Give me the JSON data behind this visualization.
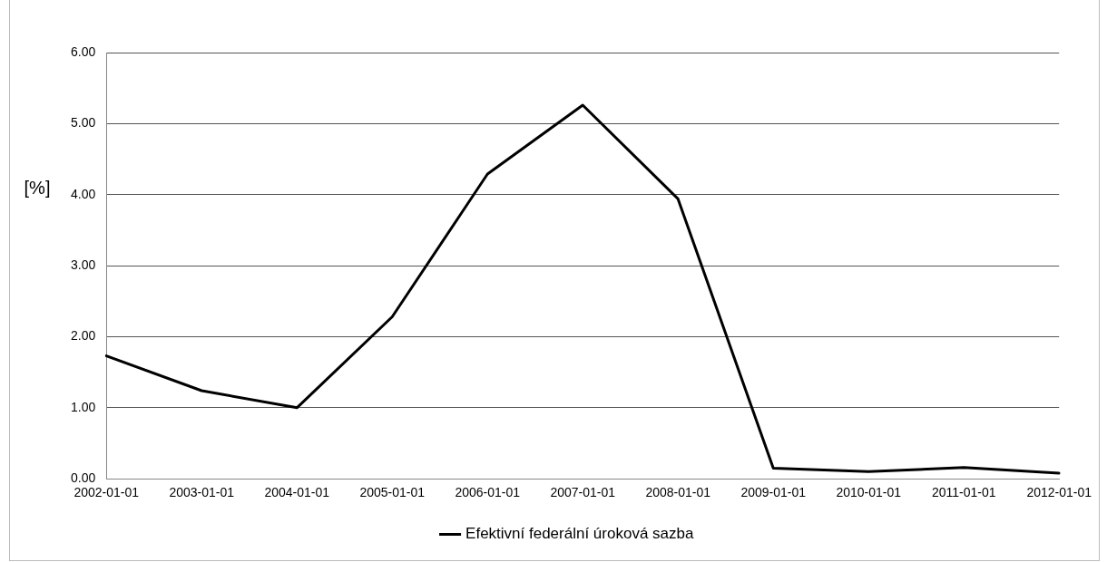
{
  "chart_data": {
    "type": "line",
    "ylabel": "[%]",
    "categories": [
      "2002-01-01",
      "2003-01-01",
      "2004-01-01",
      "2005-01-01",
      "2006-01-01",
      "2007-01-01",
      "2008-01-01",
      "2009-01-01",
      "2010-01-01",
      "2011-01-01",
      "2012-01-01"
    ],
    "series": [
      {
        "name": "Efektivní federální úroková sazba",
        "color": "#000000",
        "values": [
          1.73,
          1.24,
          1.0,
          2.28,
          4.29,
          5.26,
          3.94,
          0.15,
          0.1,
          0.16,
          0.08
        ]
      }
    ],
    "ylim": [
      0,
      6
    ],
    "yticks": [
      {
        "value": 0,
        "label": "0.00"
      },
      {
        "value": 1,
        "label": "1.00"
      },
      {
        "value": 2,
        "label": "2.00"
      },
      {
        "value": 3,
        "label": "3.00"
      },
      {
        "value": 4,
        "label": "4.00"
      },
      {
        "value": 5,
        "label": "5.00"
      },
      {
        "value": 6,
        "label": "6.00"
      }
    ],
    "grid": "y",
    "legend": "bottom",
    "marker": "none",
    "line_style": "solid"
  }
}
